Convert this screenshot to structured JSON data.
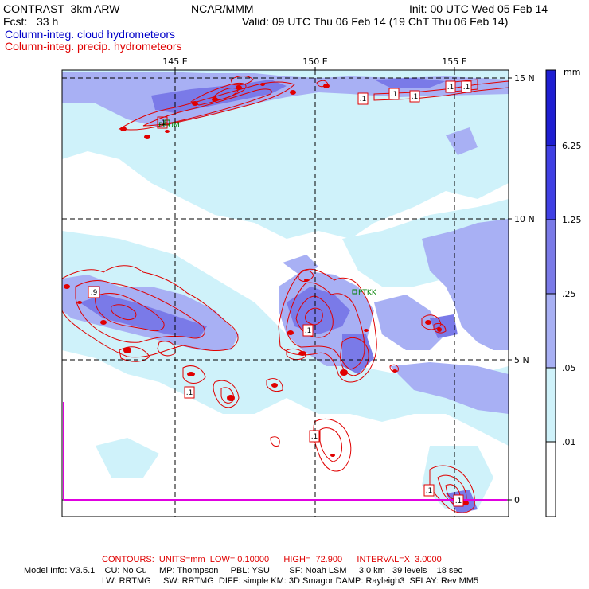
{
  "header": {
    "product": "CONTRAST  3km ARW",
    "forecast": "Fcst:   33 h",
    "center": "NCAR/MMM",
    "init": "Init: 00 UTC Wed 05 Feb 14",
    "valid": "Valid: 09 UTC Thu 06 Feb 14 (19 ChT Thu 06 Feb 14)",
    "field_cloud": "Column-integ. cloud hydrometeors",
    "field_precip": "Column-integ. precip. hydrometeors"
  },
  "map": {
    "lon_ticks": [
      "145 E",
      "150 E",
      "155 E"
    ],
    "lat_ticks": [
      "15 N",
      "10 N",
      "5 N",
      "0"
    ],
    "stations": [
      {
        "id": "PGUM",
        "label": "PGUM"
      },
      {
        "id": "PTKK",
        "label": "PTKK"
      }
    ],
    "contour_labels": [
      ".1",
      ".1",
      ".1",
      ".1",
      ".1",
      ".9",
      ".1",
      ".1",
      ".1",
      ".1",
      ".1",
      ".1"
    ]
  },
  "colorbar": {
    "unit": "mm",
    "labels": [
      "6.25",
      "1.25",
      ".25",
      ".05",
      ".01"
    ],
    "colors": [
      "#1e1ed2",
      "#4040e4",
      "#7a7ae8",
      "#a8b0f4",
      "#cff2fa",
      "#ffffff"
    ]
  },
  "footer": {
    "contours": "CONTOURS:  UNITS=mm  LOW= 0.10000      HIGH=  72.900      INTERVAL=X  3.0000",
    "model_line1": "Model Info: V3.5.1    CU: No Cu     MP: Thompson     PBL: YSU        SF: Noah LSM     3.0 km   39 levels    18 sec",
    "model_line2": "LW: RRTMG     SW: RRTMG  DIFF: simple KM: 3D Smagor DAMP: Rayleigh3  SFLAY: Rev MM5"
  },
  "colors": {
    "cloud_light": "#cff2fa",
    "cloud_mid": "#a8b0f4",
    "cloud_dark": "#7a7ae8",
    "precip_contour": "#e00000",
    "station": "#008000",
    "domain_outline": "#e000e0"
  }
}
